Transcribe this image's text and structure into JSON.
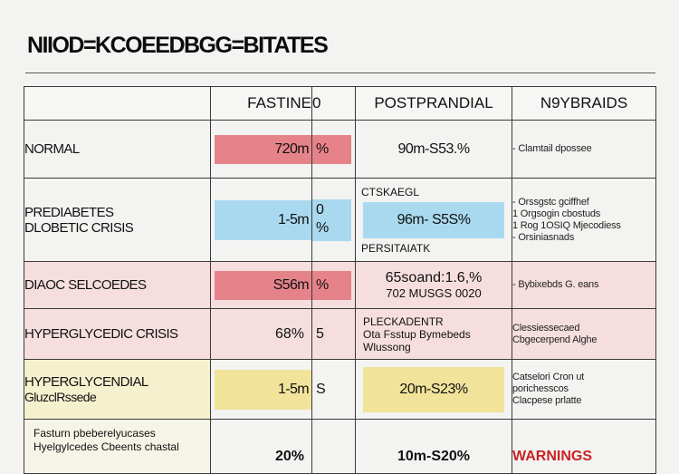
{
  "title": "NIIOD=KCOEEDBGG=BITATES",
  "headers": [
    "",
    "FASTINE",
    "0",
    "POSTPRANDIAL",
    "N9YBRAIDS"
  ],
  "rows": [
    {
      "label": "NORMAL",
      "fasting": "720m",
      "fasting_unit": "%",
      "postprandial": "90m-S53.%",
      "notes": [
        "- Clamtail dpossee"
      ],
      "fasting_color": "red"
    },
    {
      "label_lines": [
        "PREDIABETES",
        "DLOBETIC CRISIS"
      ],
      "fasting": "1-5m",
      "fasting_unit": "0\n%",
      "post_top": "CTSKAEGL",
      "postprandial": "96m- S5S%",
      "post_bottom": "PERSITAIATK",
      "notes": [
        "- Orssgstc gciffhef",
        "1 Orgsogin cbostuds",
        "1 Rog 1OSIQ Mjecodiess",
        "- Orsiniasnads"
      ],
      "fasting_color": "blue"
    },
    {
      "label": "DIAOC SELCOEDES",
      "fasting": "S56m",
      "fasting_unit": "%",
      "post_lines": [
        "65soand:1.6,%",
        "702 MUSGS 0020"
      ],
      "notes": [
        "- Bybixebds G. eans"
      ],
      "fasting_color": "red"
    },
    {
      "label": "HYPERGLYCEDIC CRISIS",
      "fasting": "68%",
      "fasting_unit": "5",
      "post_lines": [
        "PLECKADENTR",
        "Ota Fsstup Bymebeds",
        "Wlussong"
      ],
      "notes": [
        "Clessiessecaed",
        "Cbgecerpend Alghe"
      ]
    },
    {
      "label_lines": [
        "HYPERGLYCENDIAL",
        "GluzclRssede"
      ],
      "fasting": "1-5m",
      "fasting_unit": "S",
      "postprandial": "20m-S23%",
      "notes": [
        "Catselori Cron ut",
        "porichesscos",
        "Clacpese prlatte"
      ],
      "fasting_color": "yellow"
    },
    {
      "label_lines": [
        "Fasturn pbeberelyucases",
        "Hyelgylcedes Cbeents chastal"
      ],
      "fasting": "20%",
      "fasting_unit": "",
      "postprandial": "10m-S20%",
      "warning": "WARNINGS"
    }
  ]
}
